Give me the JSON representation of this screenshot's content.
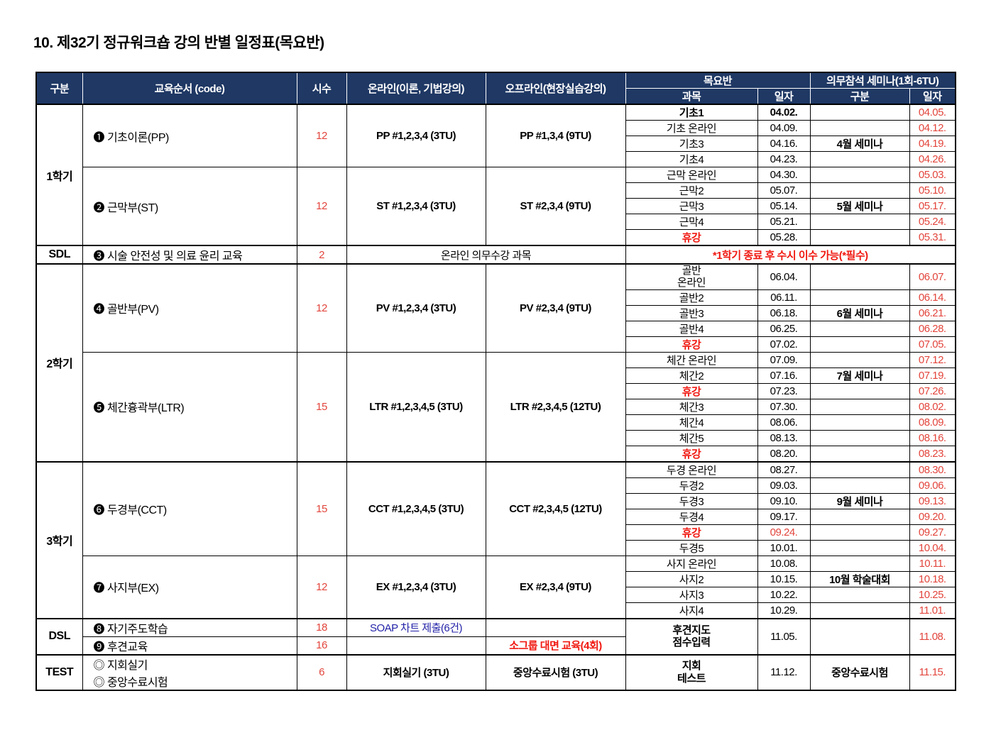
{
  "page_title": "10. 제32기 정규워크숍 강의 반별 일정표(목요반)",
  "colors": {
    "header_bg": "#1f3864",
    "date_red": "#e2453c",
    "warning_red": "#f01911",
    "chart_blue": "#2222a8"
  },
  "header": {
    "category": "구분",
    "course": "교육순서 (code)",
    "hours": "시수",
    "online": "온라인(이론, 기법강의)",
    "offline": "오프라인(현장실습강의)",
    "thursday_class": "목요반",
    "subject": "과목",
    "date": "일자",
    "seminar": "의무참석 세미나(1회-6TU)",
    "seminar_category": "구분",
    "seminar_date": "일자"
  },
  "groups": {
    "sem1": "1학기",
    "sdl": "SDL",
    "sem2": "2학기",
    "sem3": "3학기",
    "dsl": "DSL",
    "test": "TEST"
  },
  "courses": {
    "pp": {
      "name": "❶ 기초이론(PP)",
      "hours": "12",
      "online": "PP #1,2,3,4 (3TU)",
      "offline": "PP #1,3,4 (9TU)"
    },
    "st": {
      "name": "❷ 근막부(ST)",
      "hours": "12",
      "online": "ST #1,2,3,4 (3TU)",
      "offline": "ST #2,3,4 (9TU)"
    },
    "safety": {
      "name": "❸ 시술 안전성 및 의료 윤리 교육",
      "hours": "2",
      "online_offline": "온라인 의무수강 과목",
      "note": "*1학기 종료 후 수시 이수 가능(*필수)"
    },
    "pv": {
      "name": "❹ 골반부(PV)",
      "hours": "12",
      "online": "PV #1,2,3,4 (3TU)",
      "offline": "PV #2,3,4 (9TU)"
    },
    "ltr": {
      "name": "❺ 체간흉곽부(LTR)",
      "hours": "15",
      "online": "LTR #1,2,3,4,5 (3TU)",
      "offline": "LTR #2,3,4,5 (12TU)"
    },
    "cct": {
      "name": "❻ 두경부(CCT)",
      "hours": "15",
      "online": "CCT #1,2,3,4,5 (3TU)",
      "offline": "CCT #2,3,4,5 (12TU)"
    },
    "ex": {
      "name": "❼ 사지부(EX)",
      "hours": "12",
      "online": "EX #1,2,3,4 (3TU)",
      "offline": "EX #2,3,4 (9TU)"
    },
    "self_study": {
      "name": "❽ 자기주도학습",
      "hours": "18",
      "online": "SOAP 차트 제출(6건)"
    },
    "mentoring": {
      "name": "❾ 후견교육",
      "hours": "16",
      "offline": "소그룹 대면 교육(4회)"
    },
    "test": {
      "name_line1": "◎ 지회실기",
      "name_line2": "◎ 중앙수료시험",
      "hours": "6",
      "online": "지회실기 (3TU)",
      "offline": "중앙수료시험 (3TU)"
    }
  },
  "schedule": [
    {
      "subject": "기초1",
      "date": "04.02.",
      "seminar_date": "04.05."
    },
    {
      "subject": "기초 온라인",
      "date": "04.09.",
      "seminar_date": "04.12."
    },
    {
      "subject": "기초3",
      "date": "04.16.",
      "seminar": "4월 세미나",
      "seminar_date": "04.19."
    },
    {
      "subject": "기초4",
      "date": "04.23.",
      "seminar_date": "04.26."
    },
    {
      "subject": "근막 온라인",
      "date": "04.30.",
      "seminar_date": "05.03."
    },
    {
      "subject": "근막2",
      "date": "05.07.",
      "seminar_date": "05.10."
    },
    {
      "subject": "근막3",
      "date": "05.14.",
      "seminar": "5월 세미나",
      "seminar_date": "05.17."
    },
    {
      "subject": "근막4",
      "date": "05.21.",
      "seminar_date": "05.24."
    },
    {
      "subject": "휴강",
      "date": "05.28.",
      "seminar_date": "05.31."
    },
    {
      "subject": "골반\n온라인",
      "date": "06.04.",
      "seminar_date": "06.07."
    },
    {
      "subject": "골반2",
      "date": "06.11.",
      "seminar_date": "06.14."
    },
    {
      "subject": "골반3",
      "date": "06.18.",
      "seminar": "6월 세미나",
      "seminar_date": "06.21."
    },
    {
      "subject": "골반4",
      "date": "06.25.",
      "seminar_date": "06.28."
    },
    {
      "subject": "휴강",
      "date": "07.02.",
      "seminar_date": "07.05."
    },
    {
      "subject": "체간 온라인",
      "date": "07.09.",
      "seminar_date": "07.12."
    },
    {
      "subject": "체간2",
      "date": "07.16.",
      "seminar": "7월 세미나",
      "seminar_date": "07.19."
    },
    {
      "subject": "휴강",
      "date": "07.23.",
      "seminar_date": "07.26."
    },
    {
      "subject": "체간3",
      "date": "07.30.",
      "seminar_date": "08.02."
    },
    {
      "subject": "체간4",
      "date": "08.06.",
      "seminar_date": "08.09."
    },
    {
      "subject": "체간5",
      "date": "08.13.",
      "seminar_date": "08.16."
    },
    {
      "subject": "휴강",
      "date": "08.20.",
      "seminar_date": "08.23."
    },
    {
      "subject": "두경 온라인",
      "date": "08.27.",
      "seminar_date": "08.30."
    },
    {
      "subject": "두경2",
      "date": "09.03.",
      "seminar_date": "09.06."
    },
    {
      "subject": "두경3",
      "date": "09.10.",
      "seminar": "9월 세미나",
      "seminar_date": "09.13."
    },
    {
      "subject": "두경4",
      "date": "09.17.",
      "seminar_date": "09.20."
    },
    {
      "subject": "휴강",
      "date": "09.24.",
      "seminar_date": "09.27."
    },
    {
      "subject": "두경5",
      "date": "10.01.",
      "seminar_date": "10.04."
    },
    {
      "subject": "사지 온라인",
      "date": "10.08.",
      "seminar_date": "10.11."
    },
    {
      "subject": "사지2",
      "date": "10.15.",
      "seminar": "10월 학술대회",
      "seminar_date": "10.18."
    },
    {
      "subject": "사지3",
      "date": "10.22.",
      "seminar_date": "10.25."
    },
    {
      "subject": "사지4",
      "date": "10.29.",
      "seminar_date": "11.01."
    }
  ],
  "dsl_row": {
    "subject": "후견지도\n점수입력",
    "date": "11.05.",
    "seminar_date": "11.08."
  },
  "test_row": {
    "subject": "지회\n테스트",
    "date": "11.12.",
    "seminar": "중앙수료시험",
    "seminar_date": "11.15."
  }
}
